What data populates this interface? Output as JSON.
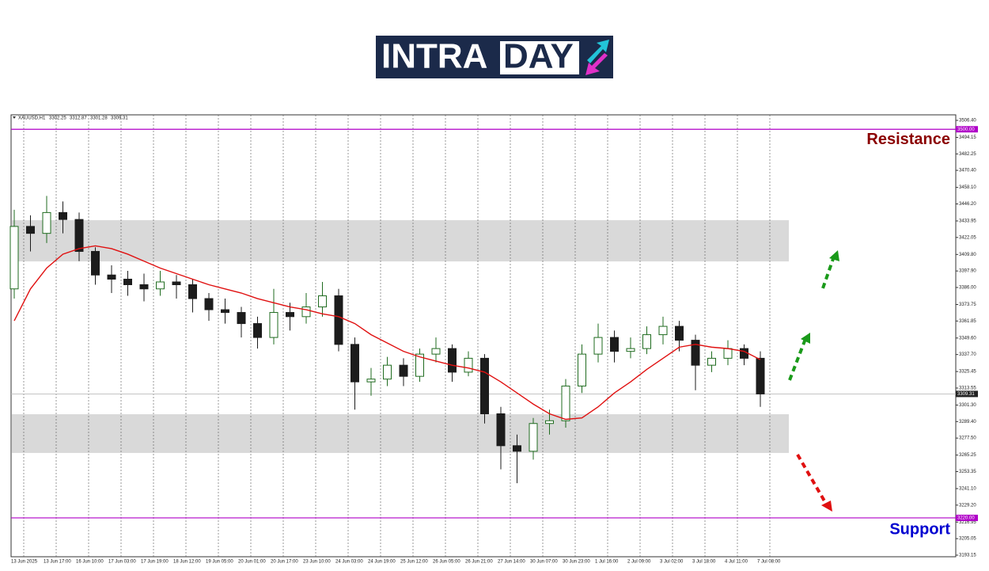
{
  "logo": {
    "part1": "INTRA",
    "part2": "DAY"
  },
  "chart_data": {
    "type": "candlestick",
    "symbol": "XAUUSD,H1",
    "header_ohlc": [
      3302.25,
      3312.87,
      3301.28,
      3309.31
    ],
    "categories": [
      "13 Jun 2025",
      null,
      "13 Jun 17:00",
      null,
      "16 Jun 10:00",
      null,
      "17 Jun 03:00",
      null,
      "17 Jun 19:00",
      null,
      "18 Jun 12:00",
      null,
      "19 Jun 05:00",
      null,
      "20 Jun 01:00",
      null,
      "20 Jun 17:00",
      null,
      "23 Jun 10:00",
      null,
      "24 Jun 03:00",
      null,
      "24 Jun 19:00",
      null,
      "25 Jun 12:00",
      null,
      "26 Jun 05:00",
      null,
      "26 Jun 21:00",
      null,
      "27 Jun 14:00",
      null,
      "30 Jun 07:00",
      null,
      "30 Jun 23:00",
      null,
      "1 Jul 16:00",
      null,
      "2 Jul 09:00",
      null,
      "3 Jul 02:00",
      null,
      "3 Jul 18:00",
      null,
      "4 Jul 11:00",
      null,
      "7 Jul 08:00"
    ],
    "open": [
      3385,
      3430,
      3425,
      3440,
      3435,
      3412,
      3395,
      3392,
      3388,
      3385,
      3390,
      3388,
      3378,
      3370,
      3368,
      3360,
      3350,
      3368,
      3365,
      3372,
      3380,
      3345,
      3318,
      3320,
      3330,
      3322,
      3338,
      3342,
      3325,
      3335,
      3295,
      3272,
      3268,
      3288,
      3290,
      3315,
      3338,
      3350,
      3340,
      3342,
      3352,
      3358,
      3348,
      3330,
      3335,
      3342,
      3335
    ],
    "high": [
      3442,
      3438,
      3452,
      3448,
      3440,
      3415,
      3402,
      3398,
      3396,
      3398,
      3395,
      3392,
      3382,
      3378,
      3372,
      3365,
      3385,
      3375,
      3382,
      3390,
      3385,
      3350,
      3328,
      3336,
      3335,
      3342,
      3350,
      3345,
      3340,
      3338,
      3300,
      3280,
      3292,
      3298,
      3320,
      3345,
      3360,
      3355,
      3350,
      3358,
      3365,
      3362,
      3352,
      3340,
      3348,
      3345,
      3340
    ],
    "low": [
      3378,
      3412,
      3418,
      3425,
      3405,
      3388,
      3382,
      3380,
      3376,
      3380,
      3378,
      3368,
      3362,
      3360,
      3350,
      3342,
      3345,
      3355,
      3360,
      3365,
      3340,
      3298,
      3308,
      3315,
      3315,
      3318,
      3332,
      3318,
      3322,
      3288,
      3255,
      3245,
      3262,
      3280,
      3285,
      3310,
      3332,
      3332,
      3335,
      3338,
      3345,
      3340,
      3312,
      3325,
      3330,
      3330,
      3300
    ],
    "close": [
      3430,
      3425,
      3440,
      3435,
      3412,
      3395,
      3392,
      3388,
      3385,
      3390,
      3388,
      3378,
      3370,
      3368,
      3360,
      3350,
      3368,
      3365,
      3372,
      3380,
      3345,
      3318,
      3320,
      3330,
      3322,
      3338,
      3342,
      3325,
      3335,
      3295,
      3272,
      3268,
      3288,
      3290,
      3315,
      3338,
      3350,
      3340,
      3342,
      3352,
      3358,
      3348,
      3330,
      3335,
      3342,
      3335,
      3309.31
    ],
    "up_color": "#1f6b1f",
    "down_color": "#1c1c1c",
    "ma": [
      3362,
      3385,
      3400,
      3410,
      3414,
      3416,
      3414,
      3410,
      3405,
      3400,
      3396,
      3392,
      3388,
      3385,
      3382,
      3378,
      3375,
      3372,
      3370,
      3367,
      3365,
      3360,
      3352,
      3346,
      3340,
      3336,
      3333,
      3330,
      3328,
      3325,
      3318,
      3310,
      3302,
      3295,
      3291,
      3292,
      3300,
      3310,
      3318,
      3327,
      3335,
      3343,
      3345,
      3343,
      3342,
      3340,
      3334
    ],
    "ma_color": "#e01010",
    "ylim": [
      3192.0,
      3510.4
    ],
    "yticks": [
      {
        "value": 3506.4,
        "label": "3506.40"
      },
      {
        "value": 3494.15,
        "label": "3494.15"
      },
      {
        "value": 3482.25,
        "label": "3482.25"
      },
      {
        "value": 3470.4,
        "label": "3470.40"
      },
      {
        "value": 3458.1,
        "label": "3458.10"
      },
      {
        "value": 3446.2,
        "label": "3446.20"
      },
      {
        "value": 3433.95,
        "label": "3433.95"
      },
      {
        "value": 3422.05,
        "label": "3422.05"
      },
      {
        "value": 3409.8,
        "label": "3409.80"
      },
      {
        "value": 3397.9,
        "label": "3397.90"
      },
      {
        "value": 3386,
        "label": "3386.00"
      },
      {
        "value": 3373.75,
        "label": "3373.75"
      },
      {
        "value": 3361.85,
        "label": "3361.85"
      },
      {
        "value": 3349.6,
        "label": "3349.60"
      },
      {
        "value": 3337.7,
        "label": "3337.70"
      },
      {
        "value": 3325.45,
        "label": "3325.45"
      },
      {
        "value": 3313.55,
        "label": "3313.55"
      },
      {
        "value": 3301.3,
        "label": "3301.30"
      },
      {
        "value": 3289.4,
        "label": "3289.40"
      },
      {
        "value": 3277.5,
        "label": "3277.50"
      },
      {
        "value": 3265.25,
        "label": "3265.25"
      },
      {
        "value": 3253.35,
        "label": "3253.35"
      },
      {
        "value": 3241.1,
        "label": "3241.10"
      },
      {
        "value": 3229.2,
        "label": "3229.20"
      },
      {
        "value": 3216.95,
        "label": "3216.95"
      },
      {
        "value": 3205.05,
        "label": "3205.05"
      },
      {
        "value": 3193.15,
        "label": "3193.15"
      }
    ],
    "levels": [
      {
        "value": 3500,
        "label": "3500.00",
        "color": "#b000c8"
      },
      {
        "value": 3220,
        "label": "3220.00",
        "color": "#b000c8"
      }
    ],
    "current_price": {
      "value": 3309.31,
      "label": "3309.31"
    },
    "zones": [
      [
        3404.8,
        3434.5
      ],
      [
        3266.8,
        3294.7
      ]
    ],
    "annotations": [
      {
        "text": "Resistance",
        "color": "#8b0000",
        "value": 3494
      },
      {
        "text": "Support",
        "color": "#0000d0",
        "value": 3213
      }
    ]
  }
}
